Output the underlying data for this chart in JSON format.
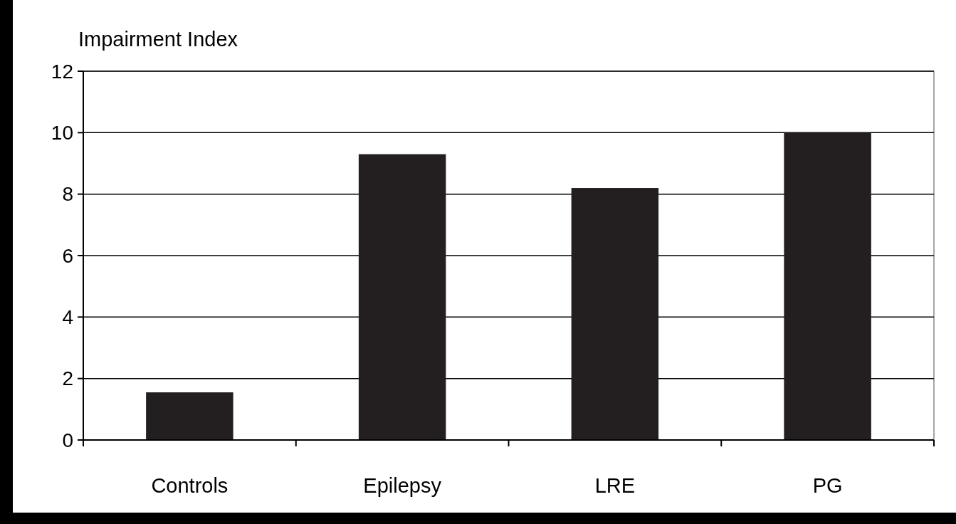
{
  "chart_data": {
    "type": "bar",
    "ylabel": "Impairment Index",
    "categories": [
      "Controls",
      "Epilepsy",
      "LRE",
      "PG"
    ],
    "values": [
      1.55,
      9.3,
      8.2,
      10.0
    ],
    "color": "#231f20",
    "ylim": [
      0,
      12
    ],
    "yticks": [
      0,
      2,
      4,
      6,
      8,
      10,
      12
    ],
    "grid": "y"
  }
}
